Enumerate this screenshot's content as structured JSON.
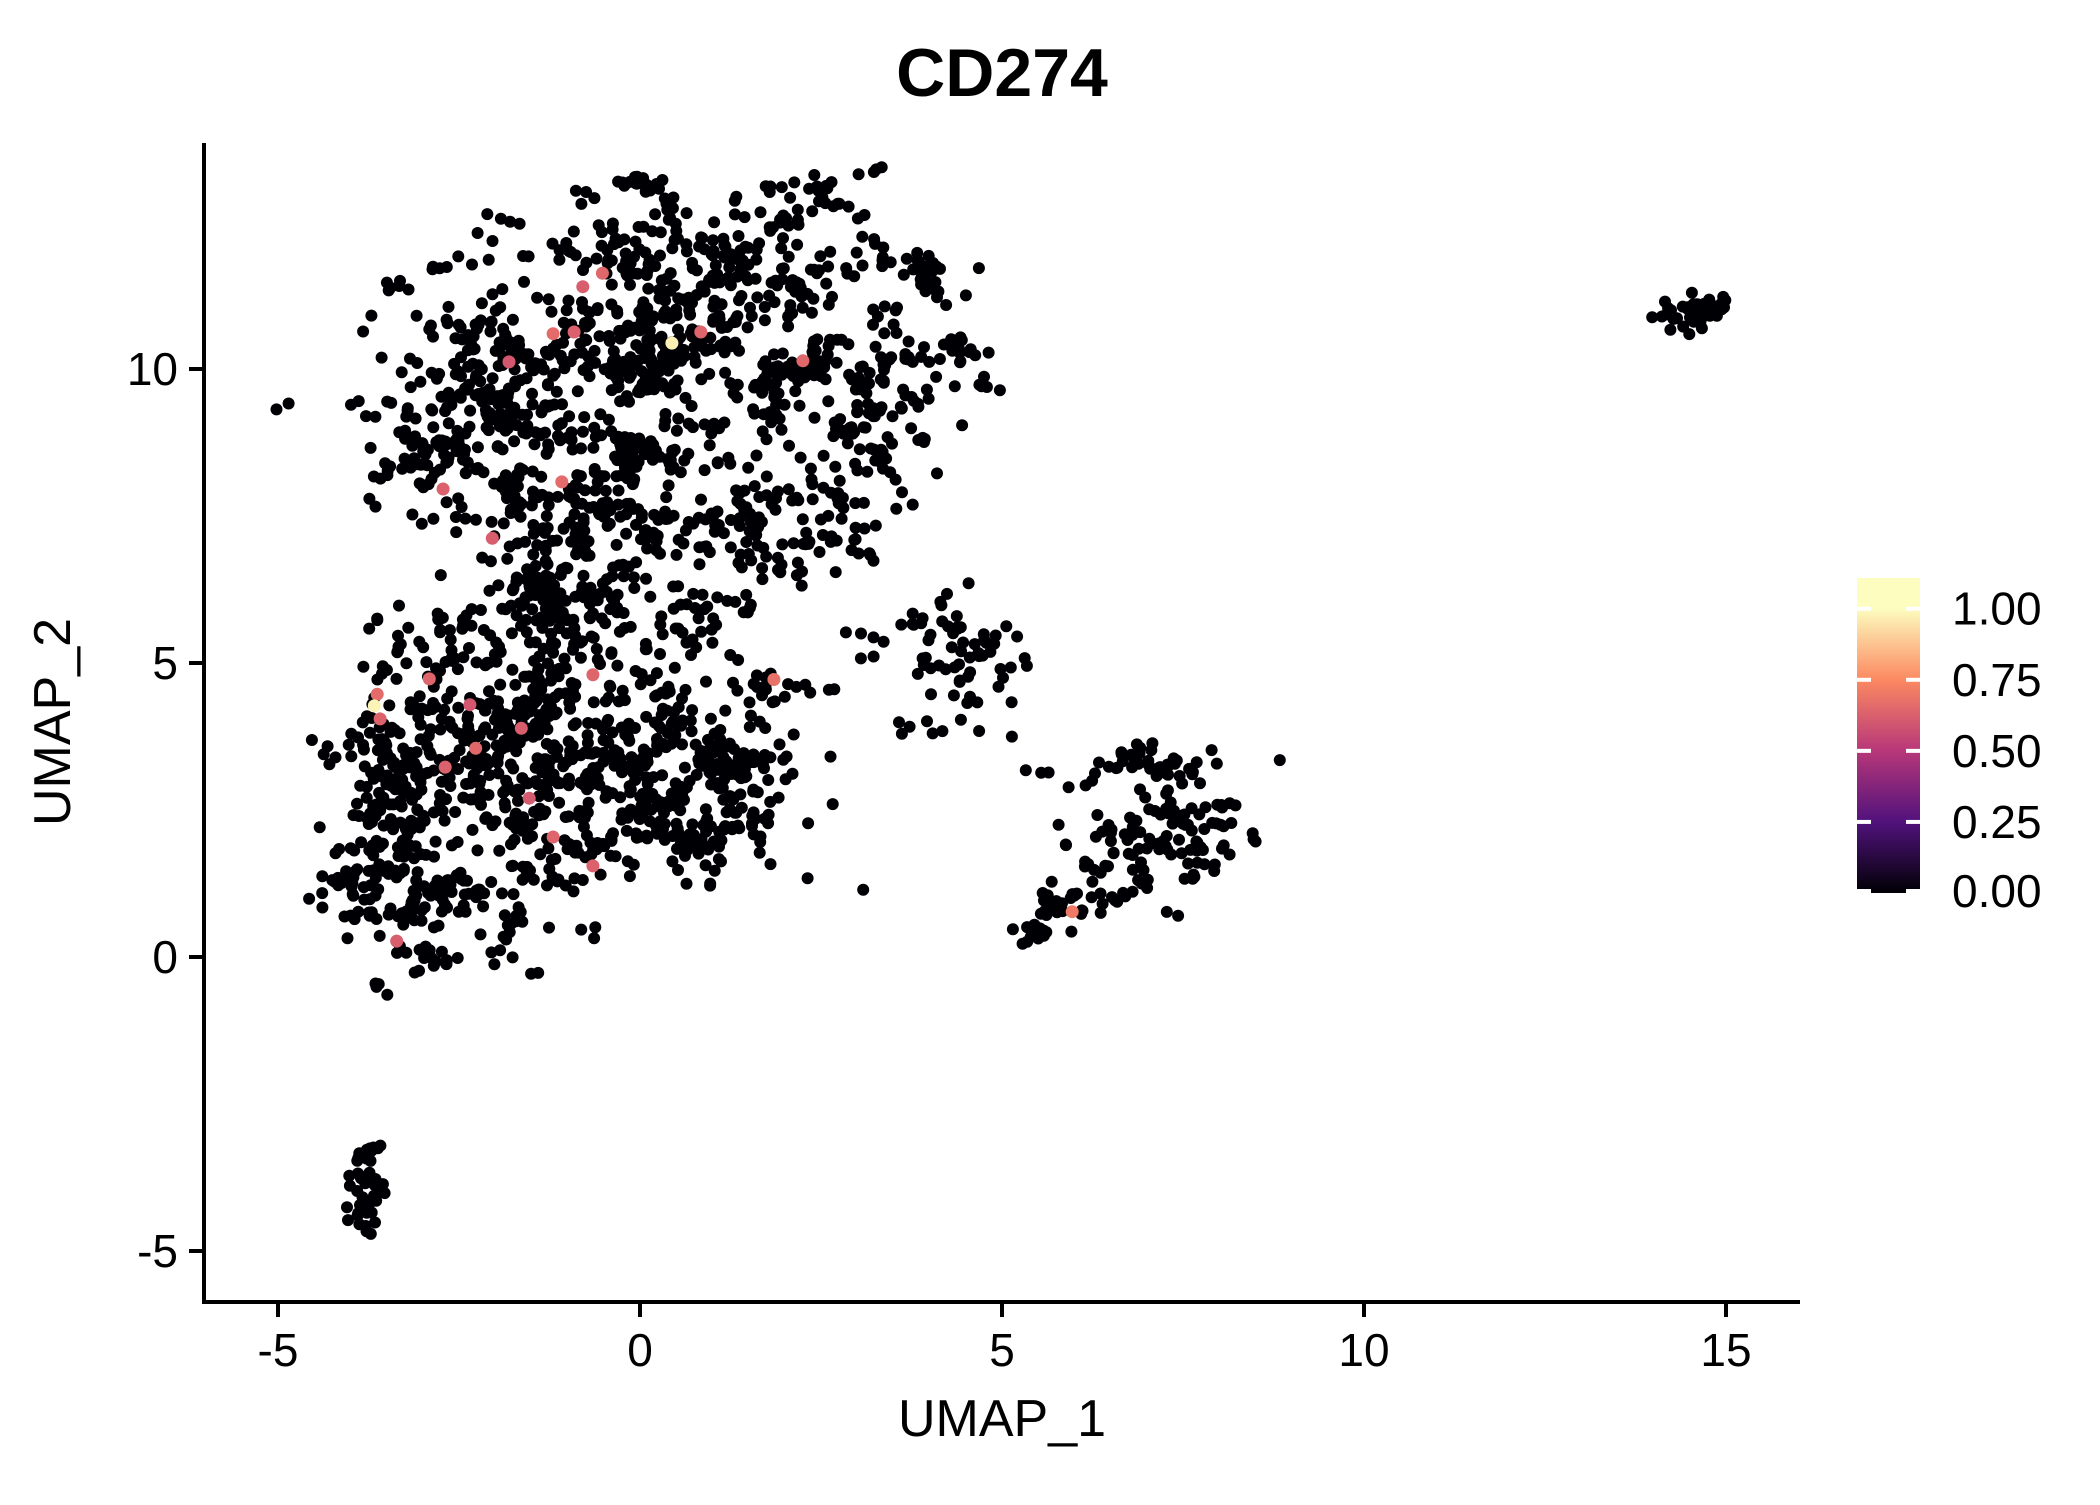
{
  "chart_data": {
    "type": "scatter",
    "title": "CD274",
    "xlabel": "UMAP_1",
    "ylabel": "UMAP_2",
    "xlim": [
      -6.0,
      16.0
    ],
    "ylim": [
      -5.9,
      13.85
    ],
    "grid": false,
    "x_axis": {
      "ticks": [
        {
          "value": -5,
          "label": "-5"
        },
        {
          "value": 0,
          "label": "0"
        },
        {
          "value": 5,
          "label": "5"
        },
        {
          "value": 10,
          "label": "10"
        },
        {
          "value": 15,
          "label": "15"
        }
      ]
    },
    "y_axis": {
      "ticks": [
        {
          "value": -5,
          "label": "-5"
        },
        {
          "value": 0,
          "label": "0"
        },
        {
          "value": 5,
          "label": "5"
        },
        {
          "value": 10,
          "label": "10"
        }
      ]
    },
    "legend": {
      "position": "right",
      "bar_value_max": 1.108,
      "ticks": [
        {
          "value": 1.0,
          "label": "1.00"
        },
        {
          "value": 0.75,
          "label": "0.75"
        },
        {
          "value": 0.5,
          "label": "0.50"
        },
        {
          "value": 0.25,
          "label": "0.25"
        },
        {
          "value": 0.0,
          "label": "0.00"
        }
      ],
      "colormap_name": "magma",
      "colormap_stops": [
        {
          "value": 0.0,
          "color": "#000004"
        },
        {
          "value": 0.25,
          "color": "#51127C"
        },
        {
          "value": 0.5,
          "color": "#B73779"
        },
        {
          "value": 0.75,
          "color": "#FC8961"
        },
        {
          "value": 1.0,
          "color": "#FCFDBF"
        }
      ]
    },
    "point_style": {
      "radius_px": 6,
      "zero_expression_color": "#000004"
    },
    "clusters": [
      {
        "name": "upper-large",
        "blobs": [
          {
            "cx": 0.5,
            "cy": 10.2,
            "sx": 1.7,
            "sy": 1.15,
            "n": 480
          },
          {
            "cx": 0.9,
            "cy": 11.9,
            "sx": 1.4,
            "sy": 0.55,
            "n": 200
          },
          {
            "cx": 2.6,
            "cy": 12.85,
            "sx": 0.45,
            "sy": 0.35,
            "n": 35
          },
          {
            "cx": -2.3,
            "cy": 9.4,
            "sx": 0.8,
            "sy": 0.85,
            "n": 180
          },
          {
            "cx": -3.05,
            "cy": 8.5,
            "sx": 0.3,
            "sy": 0.55,
            "n": 40
          },
          {
            "cx": 3.4,
            "cy": 9.7,
            "sx": 0.7,
            "sy": 0.9,
            "n": 160
          },
          {
            "cx": 0.2,
            "cy": 7.75,
            "sx": 1.5,
            "sy": 0.6,
            "n": 210
          },
          {
            "cx": 1.9,
            "cy": 6.95,
            "sx": 0.7,
            "sy": 0.45,
            "n": 55
          }
        ]
      },
      {
        "name": "lower-left-large",
        "blobs": [
          {
            "cx": -1.9,
            "cy": 3.4,
            "sx": 1.05,
            "sy": 1.15,
            "n": 460
          },
          {
            "cx": 0.2,
            "cy": 3.1,
            "sx": 1.0,
            "sy": 0.85,
            "n": 310
          },
          {
            "cx": 1.6,
            "cy": 2.9,
            "sx": 0.5,
            "sy": 0.5,
            "n": 60
          },
          {
            "cx": -1.1,
            "cy": 6.3,
            "sx": 0.7,
            "sy": 0.75,
            "n": 160
          },
          {
            "cx": -3.5,
            "cy": 2.8,
            "sx": 0.3,
            "sy": 1.3,
            "n": 130
          },
          {
            "cx": -2.6,
            "cy": 0.8,
            "sx": 0.8,
            "sy": 0.5,
            "n": 120
          },
          {
            "cx": -0.5,
            "cy": 5.3,
            "sx": 0.85,
            "sy": 0.45,
            "n": 55
          }
        ]
      },
      {
        "name": "bridge-clump",
        "blobs": [
          {
            "cx": 1.9,
            "cy": 4.7,
            "sx": 0.38,
            "sy": 0.22,
            "n": 20
          }
        ]
      },
      {
        "name": "mid-small",
        "blobs": [
          {
            "cx": 4.25,
            "cy": 4.9,
            "sx": 0.5,
            "sy": 0.5,
            "n": 70
          },
          {
            "cx": 3.05,
            "cy": 5.3,
            "sx": 0.15,
            "sy": 0.2,
            "n": 5
          }
        ]
      },
      {
        "name": "right-cluster",
        "blobs": [
          {
            "cx": 7.2,
            "cy": 2.4,
            "sx": 0.65,
            "sy": 0.55,
            "n": 95
          },
          {
            "cx": 6.4,
            "cy": 1.6,
            "sx": 0.55,
            "sy": 0.45,
            "n": 40
          },
          {
            "cx": 5.6,
            "cy": 0.45,
            "sx": 0.22,
            "sy": 0.14,
            "n": 22
          },
          {
            "cx": 6.0,
            "cy": 0.85,
            "sx": 0.24,
            "sy": 0.16,
            "n": 18
          },
          {
            "cx": 7.5,
            "cy": 1.85,
            "sx": 0.4,
            "sy": 0.14,
            "n": 22
          },
          {
            "cx": 6.9,
            "cy": 3.3,
            "sx": 0.3,
            "sy": 0.25,
            "n": 12
          }
        ]
      },
      {
        "name": "far-right-small",
        "blobs": [
          {
            "cx": 14.55,
            "cy": 11.0,
            "sx": 0.26,
            "sy": 0.12,
            "n": 55
          }
        ]
      },
      {
        "name": "bottom-left-small",
        "blobs": [
          {
            "cx": -3.8,
            "cy": -3.85,
            "sx": 0.12,
            "sy": 0.4,
            "n": 30
          },
          {
            "cx": -3.85,
            "cy": -4.3,
            "sx": 0.14,
            "sy": 0.15,
            "n": 12
          },
          {
            "cx": -3.7,
            "cy": -3.3,
            "sx": 0.09,
            "sy": 0.12,
            "n": 8
          }
        ]
      }
    ],
    "expressing_points": [
      {
        "x": -0.52,
        "y": 11.63,
        "value": 0.65
      },
      {
        "x": -0.79,
        "y": 11.4,
        "value": 0.62
      },
      {
        "x": -1.2,
        "y": 10.6,
        "value": 0.66
      },
      {
        "x": -0.91,
        "y": 10.63,
        "value": 0.63
      },
      {
        "x": 0.84,
        "y": 10.63,
        "value": 0.64
      },
      {
        "x": 0.44,
        "y": 10.44,
        "value": 0.97
      },
      {
        "x": 2.25,
        "y": 10.14,
        "value": 0.65
      },
      {
        "x": -1.81,
        "y": 10.12,
        "value": 0.6
      },
      {
        "x": -1.08,
        "y": 8.08,
        "value": 0.66
      },
      {
        "x": -2.72,
        "y": 7.96,
        "value": 0.63
      },
      {
        "x": -2.04,
        "y": 7.12,
        "value": 0.62
      },
      {
        "x": -2.91,
        "y": 4.73,
        "value": 0.64
      },
      {
        "x": -3.63,
        "y": 4.47,
        "value": 0.66
      },
      {
        "x": -3.67,
        "y": 4.27,
        "value": 0.98
      },
      {
        "x": -3.59,
        "y": 4.05,
        "value": 0.63
      },
      {
        "x": -2.35,
        "y": 4.29,
        "value": 0.6
      },
      {
        "x": -0.65,
        "y": 4.8,
        "value": 0.64
      },
      {
        "x": -1.64,
        "y": 3.89,
        "value": 0.62
      },
      {
        "x": -2.27,
        "y": 3.55,
        "value": 0.65
      },
      {
        "x": -2.69,
        "y": 3.23,
        "value": 0.63
      },
      {
        "x": -1.53,
        "y": 2.7,
        "value": 0.61
      },
      {
        "x": -1.2,
        "y": 2.04,
        "value": 0.64
      },
      {
        "x": -0.65,
        "y": 1.55,
        "value": 0.63
      },
      {
        "x": -3.36,
        "y": 0.27,
        "value": 0.62
      },
      {
        "x": 1.85,
        "y": 4.72,
        "value": 0.68
      },
      {
        "x": 5.97,
        "y": 0.77,
        "value": 0.7
      }
    ]
  }
}
